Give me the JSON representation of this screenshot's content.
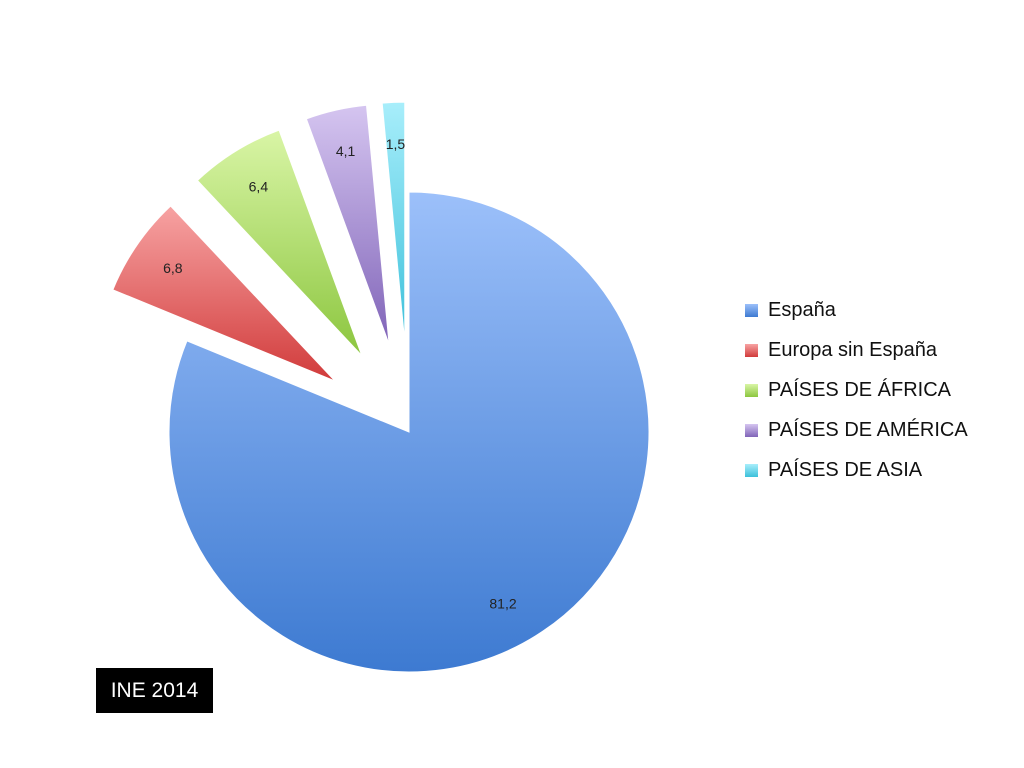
{
  "chart_data": {
    "type": "pie",
    "exploded": true,
    "gradient_fill": true,
    "slices": [
      {
        "label": "España",
        "value": 81.2,
        "value_label": "81,2",
        "color": "#4f86d8",
        "color_light": "#9cc0fa",
        "color_dark": "#3d7ad1"
      },
      {
        "label": "Europa sin España",
        "value": 6.8,
        "value_label": "6,8",
        "color": "#e55b5b",
        "color_light": "#f7a3a3",
        "color_dark": "#d13b3b"
      },
      {
        "label": "PAÍSES DE ÁFRICA",
        "value": 6.4,
        "value_label": "6,4",
        "color": "#9fd64a",
        "color_light": "#d9f5a6",
        "color_dark": "#8cc63f"
      },
      {
        "label": "PAÍSES DE AMÉRICA",
        "value": 4.1,
        "value_label": "4,1",
        "color": "#9c80cc",
        "color_light": "#d5c5f0",
        "color_dark": "#8064b8"
      },
      {
        "label": "PAÍSES DE ASIA",
        "value": 1.5,
        "value_label": "1,5",
        "color": "#5bd0e6",
        "color_light": "#a8eefb",
        "color_dark": "#3cc0da"
      }
    ],
    "legend_position": "right"
  },
  "source_badge": "INE 2014"
}
